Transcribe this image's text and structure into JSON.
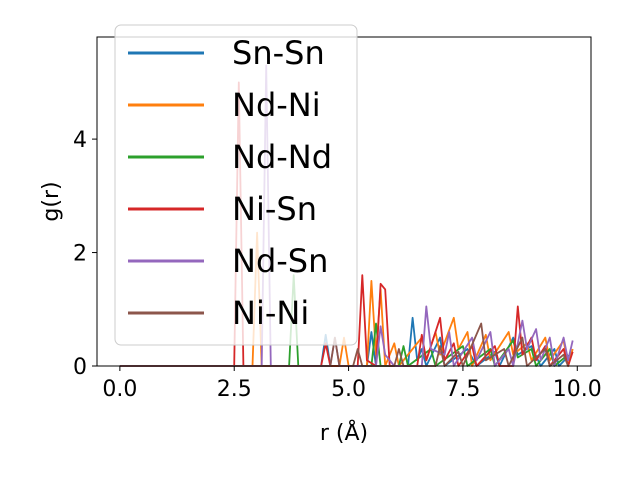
{
  "chart_data": {
    "type": "line",
    "xlabel": "r (Å)",
    "ylabel": "g(r)",
    "xlim": [
      -0.5,
      10.3
    ],
    "ylim": [
      0,
      5.8
    ],
    "xticks": [
      0.0,
      2.5,
      5.0,
      7.5,
      10.0
    ],
    "xtick_labels": [
      "0.0",
      "2.5",
      "5.0",
      "7.5",
      "10.0"
    ],
    "yticks": [
      0,
      2,
      4
    ],
    "ytick_labels": [
      "0",
      "2",
      "4"
    ],
    "grid": false,
    "legend_position": "upper left",
    "series": [
      {
        "name": "Sn-Sn",
        "color": "#1f77b4",
        "points": [
          [
            0,
            0
          ],
          [
            4.4,
            0
          ],
          [
            4.5,
            0.55
          ],
          [
            4.6,
            0
          ],
          [
            5.4,
            0
          ],
          [
            5.5,
            0.6
          ],
          [
            5.6,
            0
          ],
          [
            6.3,
            0
          ],
          [
            6.4,
            0.85
          ],
          [
            6.5,
            0.1
          ],
          [
            6.6,
            0.3
          ],
          [
            6.7,
            0
          ],
          [
            7.0,
            0.5
          ],
          [
            7.1,
            0
          ],
          [
            7.6,
            0.3
          ],
          [
            7.8,
            0
          ],
          [
            8.2,
            0.25
          ],
          [
            8.3,
            0
          ],
          [
            8.6,
            0.5
          ],
          [
            8.7,
            0.2
          ],
          [
            9.0,
            0.35
          ],
          [
            9.2,
            0
          ],
          [
            9.5,
            0.3
          ],
          [
            9.6,
            0
          ],
          [
            9.9,
            0.25
          ]
        ]
      },
      {
        "name": "Nd-Ni",
        "color": "#ff7f0e",
        "points": [
          [
            0,
            0
          ],
          [
            2.9,
            0
          ],
          [
            3.0,
            2.35
          ],
          [
            3.1,
            0
          ],
          [
            4.8,
            0
          ],
          [
            4.9,
            0.5
          ],
          [
            5.0,
            0
          ],
          [
            5.4,
            0
          ],
          [
            5.5,
            1.5
          ],
          [
            5.6,
            0.2
          ],
          [
            5.7,
            1.35
          ],
          [
            5.8,
            0
          ],
          [
            6.0,
            0.4
          ],
          [
            6.1,
            0
          ],
          [
            6.6,
            0.5
          ],
          [
            6.7,
            0.1
          ],
          [
            6.9,
            0.6
          ],
          [
            7.0,
            0.2
          ],
          [
            7.3,
            0.85
          ],
          [
            7.4,
            0.3
          ],
          [
            7.6,
            0.6
          ],
          [
            7.7,
            0
          ],
          [
            8.0,
            0.55
          ],
          [
            8.1,
            0.1
          ],
          [
            8.5,
            0.6
          ],
          [
            8.6,
            0.2
          ],
          [
            8.9,
            0.4
          ],
          [
            9.0,
            0.1
          ],
          [
            9.3,
            0.5
          ],
          [
            9.4,
            0.1
          ],
          [
            9.7,
            0.45
          ],
          [
            9.8,
            0
          ],
          [
            9.9,
            0.3
          ]
        ]
      },
      {
        "name": "Nd-Nd",
        "color": "#2ca02c",
        "points": [
          [
            0,
            0
          ],
          [
            3.7,
            0
          ],
          [
            3.8,
            1.6
          ],
          [
            3.9,
            0
          ],
          [
            5.5,
            0
          ],
          [
            5.6,
            0.75
          ],
          [
            5.7,
            0
          ],
          [
            6.1,
            0
          ],
          [
            6.2,
            0.35
          ],
          [
            6.3,
            0
          ],
          [
            6.8,
            0.3
          ],
          [
            6.9,
            0
          ],
          [
            7.5,
            0.35
          ],
          [
            7.6,
            0
          ],
          [
            8.1,
            0.3
          ],
          [
            8.2,
            0
          ],
          [
            8.6,
            0.45
          ],
          [
            8.7,
            0.15
          ],
          [
            9.0,
            0.3
          ],
          [
            9.1,
            0
          ],
          [
            9.4,
            0.3
          ],
          [
            9.5,
            0
          ],
          [
            9.8,
            0.2
          ]
        ]
      },
      {
        "name": "Ni-Sn",
        "color": "#d62728",
        "points": [
          [
            0,
            0
          ],
          [
            2.5,
            0
          ],
          [
            2.6,
            5.0
          ],
          [
            2.7,
            0
          ],
          [
            4.4,
            0
          ],
          [
            4.5,
            0.4
          ],
          [
            4.6,
            0
          ],
          [
            5.2,
            0
          ],
          [
            5.3,
            1.6
          ],
          [
            5.4,
            0.1
          ],
          [
            5.6,
            0
          ],
          [
            5.7,
            1.45
          ],
          [
            5.8,
            1.35
          ],
          [
            5.9,
            0
          ],
          [
            6.5,
            0
          ],
          [
            6.6,
            0.55
          ],
          [
            6.7,
            0.1
          ],
          [
            7.0,
            0.85
          ],
          [
            7.1,
            0.1
          ],
          [
            7.3,
            0.4
          ],
          [
            7.4,
            0
          ],
          [
            7.7,
            0.35
          ],
          [
            7.8,
            0
          ],
          [
            8.2,
            0.35
          ],
          [
            8.3,
            0
          ],
          [
            8.6,
            0
          ],
          [
            8.7,
            1.05
          ],
          [
            8.8,
            0.2
          ],
          [
            9.0,
            0.5
          ],
          [
            9.1,
            0.1
          ],
          [
            9.3,
            0.35
          ],
          [
            9.4,
            0
          ],
          [
            9.7,
            0.3
          ],
          [
            9.8,
            0
          ],
          [
            9.9,
            0.25
          ]
        ]
      },
      {
        "name": "Nd-Sn",
        "color": "#9467bd",
        "points": [
          [
            0,
            0
          ],
          [
            3.1,
            0
          ],
          [
            3.2,
            5.3
          ],
          [
            3.3,
            0
          ],
          [
            4.6,
            0
          ],
          [
            4.7,
            0.5
          ],
          [
            4.8,
            0
          ],
          [
            5.6,
            0
          ],
          [
            5.7,
            0.7
          ],
          [
            5.8,
            0.2
          ],
          [
            6.0,
            0
          ],
          [
            6.6,
            0
          ],
          [
            6.7,
            1.05
          ],
          [
            6.8,
            0.3
          ],
          [
            7.1,
            0.2
          ],
          [
            7.2,
            0.6
          ],
          [
            7.3,
            0
          ],
          [
            7.7,
            0.5
          ],
          [
            7.8,
            0.1
          ],
          [
            8.1,
            0.6
          ],
          [
            8.2,
            0
          ],
          [
            8.5,
            0.3
          ],
          [
            8.6,
            0
          ],
          [
            8.8,
            0.8
          ],
          [
            8.9,
            0.3
          ],
          [
            9.1,
            0.65
          ],
          [
            9.2,
            0.1
          ],
          [
            9.4,
            0.5
          ],
          [
            9.5,
            0
          ],
          [
            9.7,
            0.5
          ],
          [
            9.8,
            0.1
          ],
          [
            9.9,
            0.45
          ]
        ]
      },
      {
        "name": "Ni-Ni",
        "color": "#8c564b",
        "points": [
          [
            0,
            0
          ],
          [
            4.6,
            0
          ],
          [
            4.7,
            0.5
          ],
          [
            4.8,
            0
          ],
          [
            5.1,
            0
          ],
          [
            5.2,
            0.3
          ],
          [
            5.3,
            0
          ],
          [
            6.0,
            0
          ],
          [
            6.1,
            0.3
          ],
          [
            6.2,
            0
          ],
          [
            6.9,
            0
          ],
          [
            7.0,
            0.35
          ],
          [
            7.1,
            0
          ],
          [
            7.4,
            0.25
          ],
          [
            7.5,
            0
          ],
          [
            7.9,
            0.75
          ],
          [
            8.0,
            0.1
          ],
          [
            8.4,
            0.3
          ],
          [
            8.5,
            0
          ],
          [
            8.8,
            0.5
          ],
          [
            8.9,
            0
          ],
          [
            9.3,
            0.3
          ],
          [
            9.4,
            0
          ],
          [
            9.7,
            0.2
          ],
          [
            9.8,
            0
          ]
        ]
      }
    ]
  }
}
